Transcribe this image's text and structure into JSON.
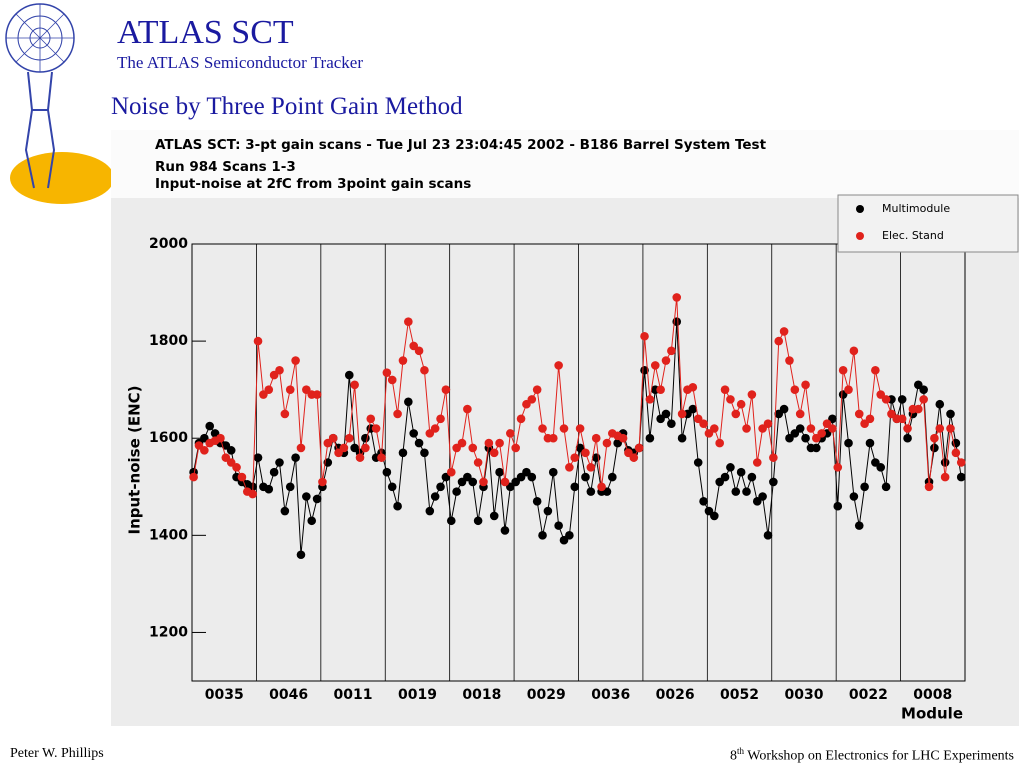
{
  "header": {
    "title": "ATLAS SCT",
    "subtitle": "The ATLAS Semiconductor Tracker",
    "slide_title": "Noise by Three Point Gain Method"
  },
  "footer": {
    "author": "Peter W. Phillips",
    "event_num": "8",
    "event_sup": "th",
    "event_rest": " Workshop on Electronics for LHC Experiments"
  },
  "chart_data": {
    "type": "line",
    "title": "ATLAS SCT: 3-pt gain scans  -  Tue Jul 23 23:04:45 2002  -  B186 Barrel System Test",
    "subtitle": "Run 984   Scans 1-3",
    "subtitle2": "Input-noise at 2fC from 3point gain scans",
    "ylabel": "Input-noise (ENC)",
    "xlabel": "Module",
    "categories": [
      "0035",
      "0046",
      "0011",
      "0019",
      "0018",
      "0029",
      "0036",
      "0026",
      "0052",
      "0030",
      "0022",
      "0008"
    ],
    "ylim": [
      1100,
      2000
    ],
    "yticks": [
      1200,
      1400,
      1600,
      1800,
      2000
    ],
    "legend": "top-right",
    "series": [
      {
        "name": "Multimodule",
        "color": "#000000",
        "values": [
          [
            1530,
            1590,
            1600,
            1625,
            1610,
            1590,
            1585,
            1575,
            1520,
            1510,
            1505,
            1500
          ],
          [
            1560,
            1500,
            1495,
            1530,
            1550,
            1450,
            1500,
            1560,
            1360,
            1480,
            1430,
            1475
          ],
          [
            1500,
            1550,
            1600,
            1580,
            1570,
            1730,
            1580,
            1570,
            1600,
            1620,
            1560,
            1570
          ],
          [
            1530,
            1500,
            1460,
            1570,
            1675,
            1610,
            1590,
            1570,
            1450,
            1480,
            1500,
            1520
          ],
          [
            1430,
            1490,
            1510,
            1520,
            1510,
            1430,
            1500,
            1580,
            1440,
            1530,
            1410,
            1500
          ],
          [
            1510,
            1520,
            1530,
            1520,
            1470,
            1400,
            1450,
            1530,
            1420,
            1390,
            1400,
            1500
          ],
          [
            1580,
            1520,
            1490,
            1560,
            1490,
            1490,
            1520,
            1590,
            1610,
            1575,
            1570,
            1580
          ],
          [
            1740,
            1600,
            1700,
            1640,
            1650,
            1630,
            1840,
            1600,
            1650,
            1660,
            1550,
            1470
          ],
          [
            1450,
            1440,
            1510,
            1520,
            1540,
            1490,
            1530,
            1490,
            1520,
            1470,
            1480,
            1400
          ],
          [
            1510,
            1650,
            1660,
            1600,
            1610,
            1620,
            1600,
            1580,
            1580,
            1600,
            1610,
            1640
          ],
          [
            1460,
            1690,
            1590,
            1480,
            1420,
            1500,
            1590,
            1550,
            1540,
            1500,
            1680,
            1640
          ],
          [
            1680,
            1600,
            1650,
            1710,
            1700,
            1510,
            1580,
            1670,
            1550,
            1650,
            1590,
            1520
          ]
        ]
      },
      {
        "name": "Elec. Stand",
        "color": "#e0221c",
        "values": [
          [
            1520,
            1585,
            1575,
            1590,
            1595,
            1600,
            1560,
            1550,
            1540,
            1520,
            1490,
            1485
          ],
          [
            1800,
            1690,
            1700,
            1730,
            1740,
            1650,
            1700,
            1760,
            1580,
            1700,
            1690,
            1690
          ],
          [
            1510,
            1590,
            1600,
            1570,
            1580,
            1600,
            1710,
            1560,
            1580,
            1640,
            1620,
            1560
          ],
          [
            1735,
            1720,
            1650,
            1760,
            1840,
            1790,
            1780,
            1740,
            1610,
            1620,
            1640,
            1700
          ],
          [
            1530,
            1580,
            1590,
            1660,
            1580,
            1550,
            1510,
            1590,
            1570,
            1590,
            1510,
            1610
          ],
          [
            1580,
            1640,
            1670,
            1680,
            1700,
            1620,
            1600,
            1600,
            1750,
            1620,
            1540,
            1560
          ],
          [
            1620,
            1570,
            1540,
            1600,
            1500,
            1590,
            1610,
            1605,
            1600,
            1570,
            1560,
            1580
          ],
          [
            1810,
            1680,
            1750,
            1700,
            1760,
            1780,
            1890,
            1650,
            1700,
            1705,
            1640,
            1630
          ],
          [
            1610,
            1620,
            1590,
            1700,
            1680,
            1650,
            1670,
            1620,
            1690,
            1550,
            1620,
            1630
          ],
          [
            1560,
            1800,
            1820,
            1760,
            1700,
            1650,
            1710,
            1620,
            1600,
            1610,
            1630,
            1620
          ],
          [
            1540,
            1740,
            1700,
            1780,
            1650,
            1630,
            1640,
            1740,
            1690,
            1680,
            1650,
            1640
          ],
          [
            1640,
            1620,
            1660,
            1660,
            1680,
            1500,
            1600,
            1620,
            1520,
            1620,
            1570,
            1550
          ]
        ]
      }
    ]
  }
}
